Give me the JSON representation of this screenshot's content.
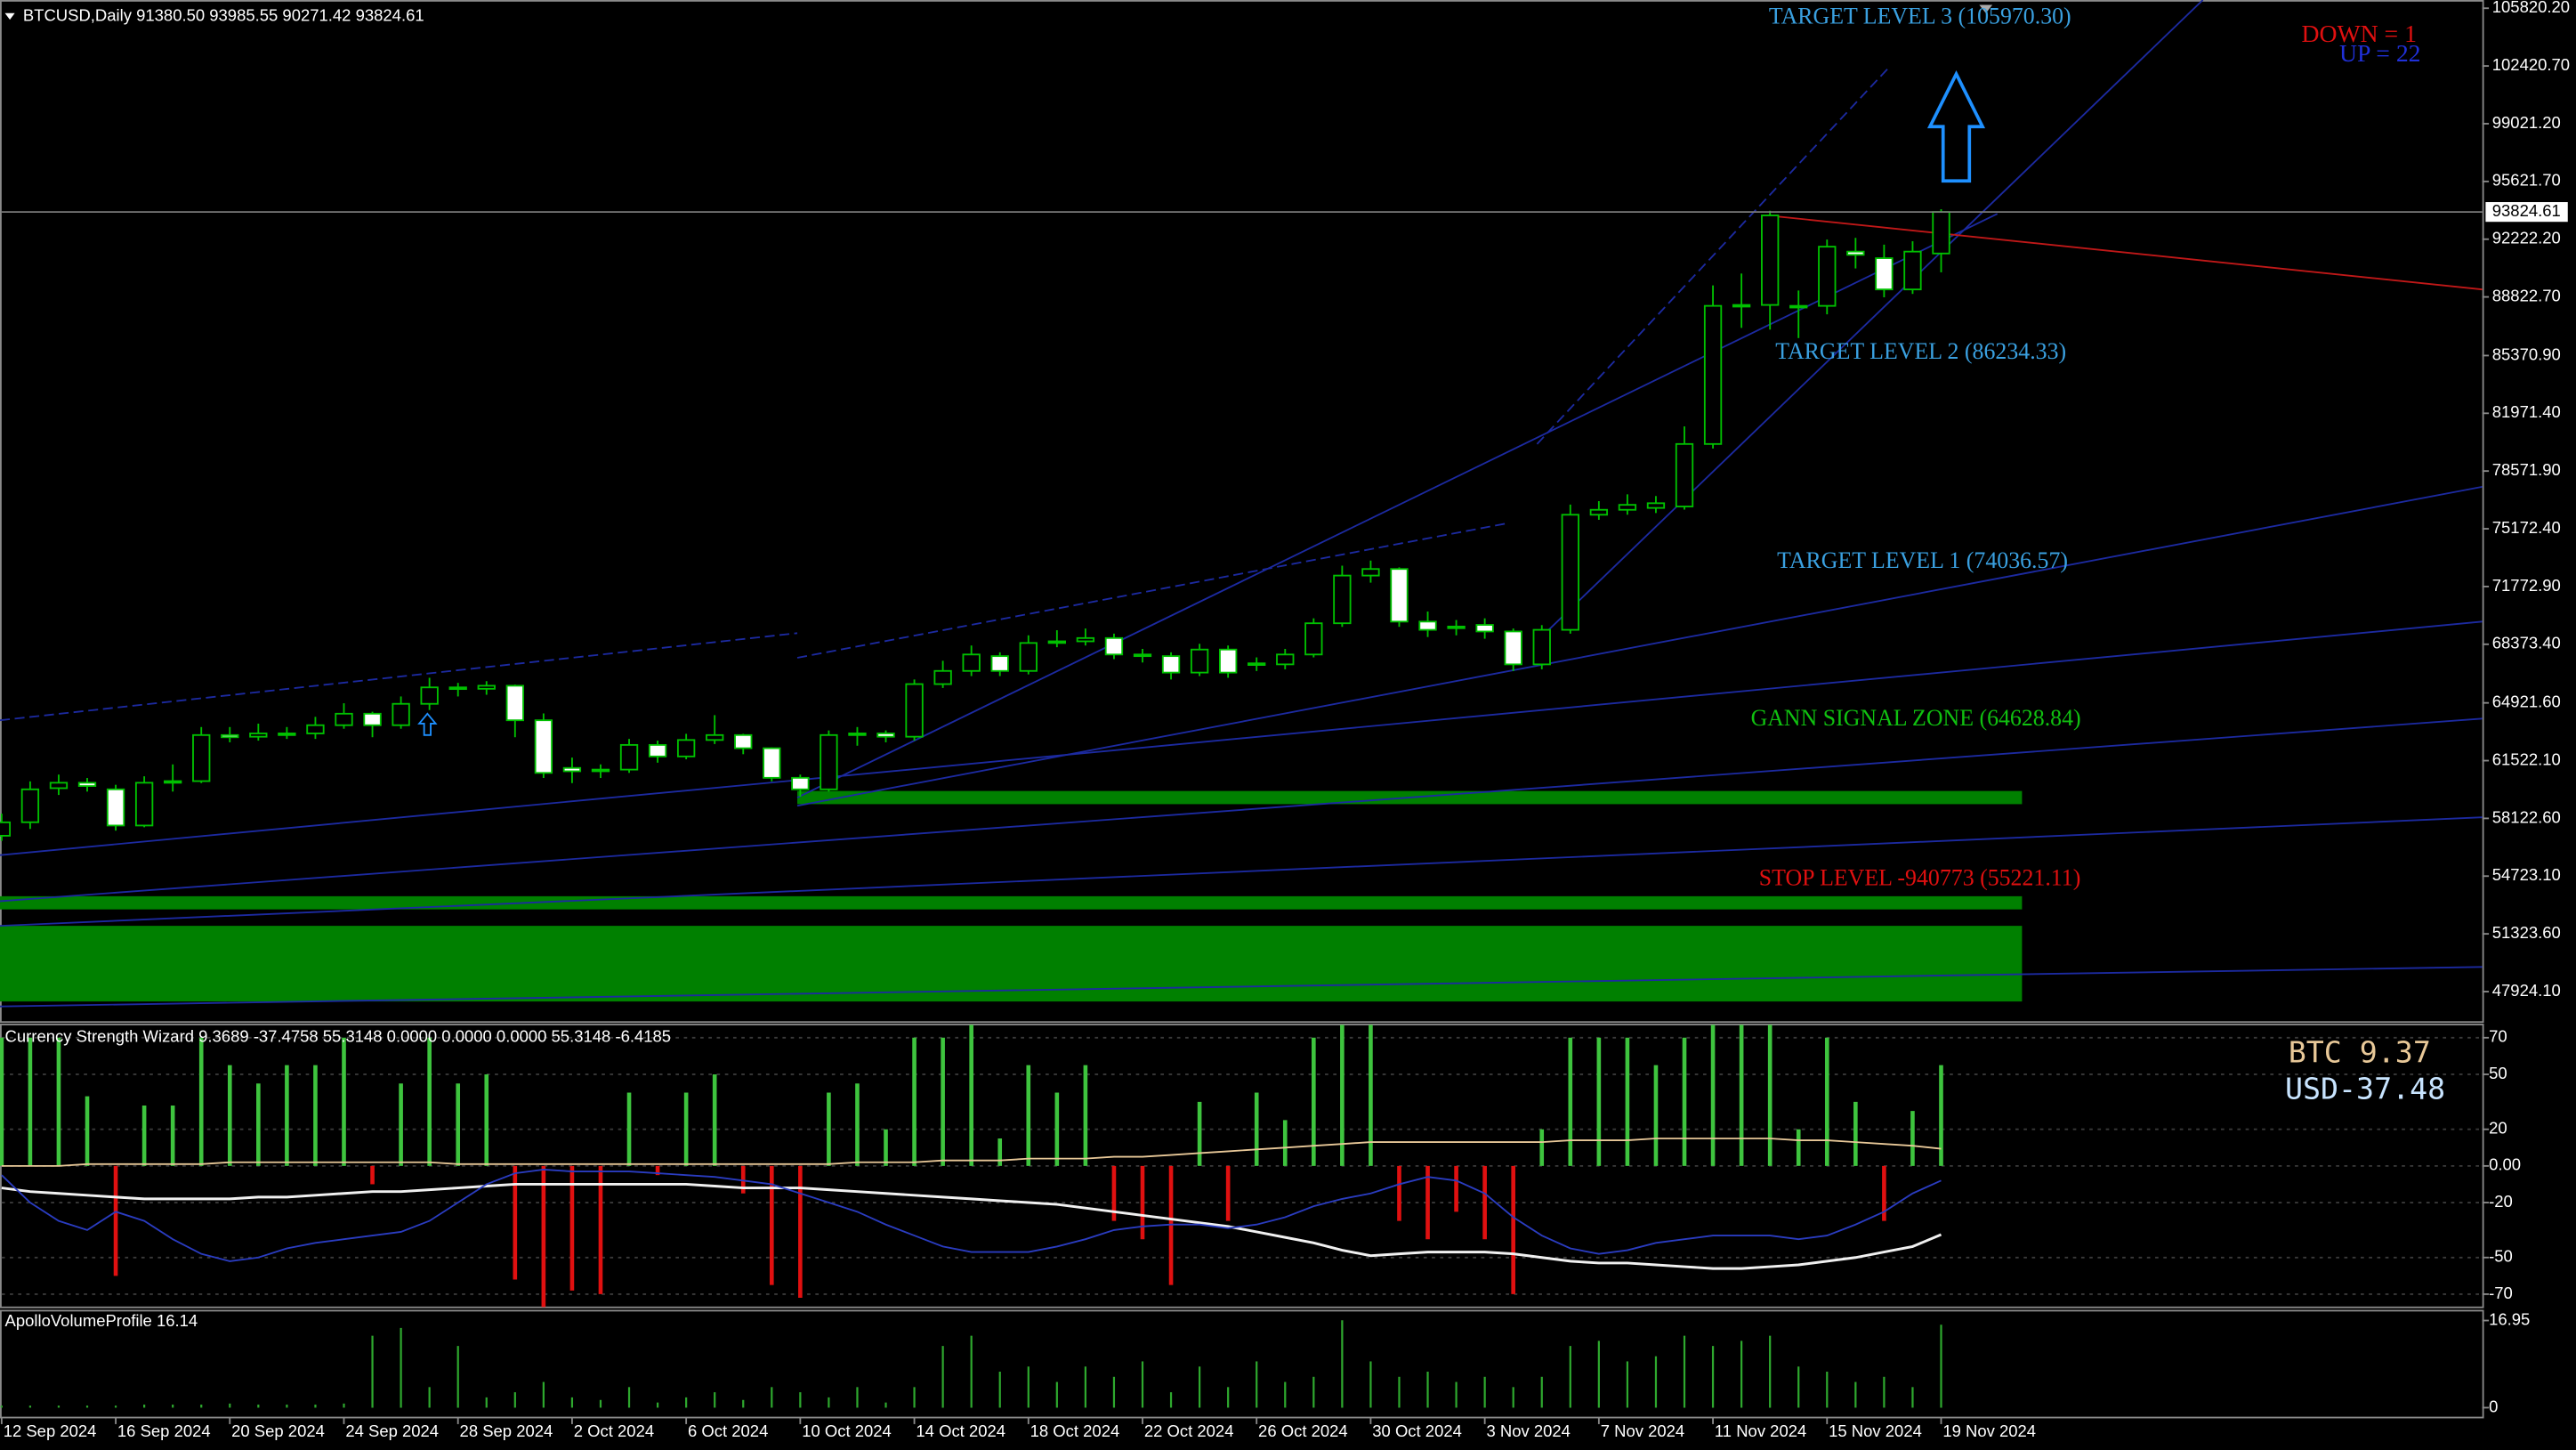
{
  "chart_data": [
    {
      "type": "candlestick",
      "title": "BTCUSD,Daily  91380.50 93985.55 90271.42 93824.61",
      "categories": [
        "12 Sep 2024",
        null,
        null,
        null,
        "16 Sep 2024",
        null,
        null,
        null,
        "20 Sep 2024",
        null,
        null,
        null,
        "24 Sep 2024",
        null,
        null,
        null,
        "28 Sep 2024",
        null,
        null,
        null,
        "2 Oct 2024",
        null,
        null,
        null,
        "6 Oct 2024",
        null,
        null,
        null,
        "10 Oct 2024",
        null,
        null,
        null,
        "14 Oct 2024",
        null,
        null,
        null,
        "18 Oct 2024",
        null,
        null,
        null,
        "22 Oct 2024",
        null,
        null,
        null,
        "26 Oct 2024",
        null,
        null,
        null,
        "30 Oct 2024",
        null,
        null,
        null,
        "3 Nov 2024",
        null,
        null,
        null,
        "7 Nov 2024",
        null,
        null,
        null,
        "11 Nov 2024",
        null,
        null,
        null,
        "15 Nov 2024",
        null,
        null,
        null,
        "19 Nov 2024"
      ],
      "open": [
        57100,
        57896,
        59900,
        60220,
        59832,
        57702,
        60220,
        60316,
        63027,
        62930,
        63124,
        63124,
        63608,
        64285,
        63608,
        64866,
        65834,
        65750,
        65931,
        63898,
        61091,
        60897,
        60994,
        62446,
        61769,
        62737,
        63027,
        62253,
        60510,
        59832,
        63027,
        63124,
        62930,
        66028,
        66803,
        67674,
        66803,
        68449,
        68546,
        68739,
        67771,
        67674,
        66706,
        68062,
        67190,
        67190,
        67771,
        69610,
        72418,
        72805,
        69707,
        69416,
        69513,
        69126,
        67190,
        69223,
        75999,
        76290,
        76400,
        76484,
        80163,
        88296,
        88350,
        88296,
        88296,
        91491,
        91104,
        89264,
        91380.5
      ],
      "high": [
        58400,
        60300,
        60700,
        60500,
        60100,
        60600,
        61300,
        63500,
        63500,
        63700,
        63500,
        64100,
        64900,
        64400,
        65300,
        66400,
        66100,
        66200,
        66000,
        64300,
        61700,
        61300,
        62800,
        62700,
        63100,
        64200,
        63100,
        62300,
        60700,
        63300,
        63500,
        63300,
        66300,
        67400,
        68300,
        67900,
        68900,
        69200,
        69300,
        69000,
        68100,
        67900,
        68400,
        68300,
        67600,
        68100,
        69900,
        73000,
        73300,
        72900,
        70300,
        69800,
        69900,
        69300,
        69500,
        76600,
        76800,
        77200,
        77100,
        81200,
        89500,
        90200,
        93900,
        89200,
        92200,
        92300,
        91900,
        92100,
        93985.55
      ],
      "low": [
        56800,
        57500,
        59500,
        59700,
        57400,
        57600,
        59700,
        60200,
        62600,
        62700,
        62800,
        62800,
        63400,
        62900,
        63400,
        64500,
        65300,
        65400,
        62900,
        60500,
        60200,
        60500,
        60800,
        61400,
        61600,
        62500,
        61900,
        60300,
        59400,
        59700,
        62400,
        62600,
        62700,
        65800,
        66500,
        66500,
        66600,
        68200,
        68300,
        67500,
        67300,
        66300,
        66500,
        66400,
        66800,
        66900,
        67600,
        69400,
        72000,
        69400,
        68800,
        68900,
        68700,
        66800,
        66900,
        69000,
        75700,
        76000,
        76100,
        76300,
        79900,
        87000,
        86900,
        86400,
        87800,
        90500,
        88800,
        89000,
        90271.42
      ],
      "close": [
        57890,
        59832,
        60220,
        60026,
        57702,
        60220,
        60316,
        63027,
        62900,
        63124,
        63050,
        63608,
        64285,
        63608,
        64866,
        65834,
        65750,
        65931,
        63898,
        60800,
        60897,
        60994,
        62446,
        61769,
        62737,
        63027,
        62253,
        60510,
        59832,
        63027,
        63124,
        62930,
        66028,
        66803,
        67771,
        66803,
        68449,
        68546,
        68739,
        67771,
        67700,
        66706,
        68062,
        66706,
        67250,
        67771,
        69610,
        72418,
        72805,
        69707,
        69223,
        69350,
        69126,
        67190,
        69223,
        75999,
        76290,
        76581,
        76677,
        80163,
        88296,
        88350,
        93621,
        88250,
        91781,
        91300,
        89264,
        91491,
        93824.61
      ],
      "up_color": "#000000",
      "down_color": "#ffffff",
      "outline_color": "#00c000",
      "ylim": [
        46180,
        106304
      ],
      "yticks": [
        {
          "value": 105820.2,
          "label": "105820.20"
        },
        {
          "value": 102420.7,
          "label": "102420.70"
        },
        {
          "value": 99021.2,
          "label": "99021.20"
        },
        {
          "value": 95621.7,
          "label": "95621.70"
        },
        {
          "value": 92222.2,
          "label": "92222.20"
        },
        {
          "value": 88822.7,
          "label": "88822.70"
        },
        {
          "value": 85370.9,
          "label": "85370.90"
        },
        {
          "value": 81971.4,
          "label": "81971.40"
        },
        {
          "value": 78571.9,
          "label": "78571.90"
        },
        {
          "value": 75172.4,
          "label": "75172.40"
        },
        {
          "value": 71772.9,
          "label": "71772.90"
        },
        {
          "value": 68373.4,
          "label": "68373.40"
        },
        {
          "value": 64921.6,
          "label": "64921.60"
        },
        {
          "value": 61522.1,
          "label": "61522.10"
        },
        {
          "value": 58122.6,
          "label": "58122.60"
        },
        {
          "value": 54723.1,
          "label": "54723.10"
        },
        {
          "value": 51323.6,
          "label": "51323.60"
        },
        {
          "value": 47924.1,
          "label": "47924.10"
        }
      ],
      "annotations": {
        "target3": "TARGET LEVEL 3 (105970.30)",
        "target2": "TARGET LEVEL 2 (86234.33)",
        "target1": "TARGET LEVEL 1 (74036.57)",
        "gann": "GANN SIGNAL ZONE (64628.84)",
        "stop": "STOP LEVEL -940773 (55221.11)",
        "down": "DOWN = 1",
        "up": "UP = 22"
      }
    },
    {
      "type": "oscillator",
      "title": "Currency Strength Wizard  9.3689 -37.4758 55.3148 0.0000 0.0000 0.0000 55.3148 -6.4185",
      "labels": [
        "BTC 9.37",
        "USD-37.48"
      ],
      "bars": {
        "color": "#3ec43e",
        "negative_color": "#e01010",
        "values": [
          70,
          70,
          70,
          38,
          -60,
          33,
          33,
          70,
          55,
          45,
          55,
          55,
          70,
          -10,
          45,
          70,
          45,
          50,
          -62,
          -77,
          -68,
          -70,
          40,
          -5,
          40,
          50,
          -15,
          -65,
          -72,
          40,
          45,
          20,
          70,
          70,
          77,
          15,
          55,
          40,
          55,
          -30,
          -40,
          -65,
          35,
          -30,
          40,
          25,
          70,
          77,
          77,
          -30,
          -40,
          -25,
          -40,
          -70,
          20,
          70,
          70,
          70,
          55,
          70,
          77,
          77,
          77,
          20,
          70,
          35,
          -30,
          30,
          55
        ]
      },
      "lines": [
        {
          "color": "#f0f0f0",
          "values": [
            -12,
            -14,
            -15,
            -16,
            -17,
            -18,
            -18,
            -18,
            -18,
            -17,
            -17,
            -16,
            -15,
            -14,
            -14,
            -13,
            -12,
            -11,
            -10,
            -10,
            -10,
            -10,
            -10,
            -10,
            -10,
            -11,
            -12,
            -12,
            -12,
            -13,
            -14,
            -15,
            -16,
            -17,
            -18,
            -19,
            -20,
            -21,
            -23,
            -25,
            -27,
            -29,
            -31,
            -33,
            -36,
            -39,
            -42,
            -46,
            -49,
            -48,
            -47,
            -47,
            -47,
            -48,
            -50,
            -52,
            -53,
            -53,
            -54,
            -55,
            -56,
            -56,
            -55,
            -54,
            -52,
            -50,
            -47,
            -44,
            -37.48
          ]
        },
        {
          "color": "#2a3cc0",
          "values": [
            -5,
            -20,
            -30,
            -35,
            -25,
            -30,
            -40,
            -48,
            -52,
            -50,
            -45,
            -42,
            -40,
            -38,
            -36,
            -30,
            -20,
            -10,
            -4,
            -2,
            -3,
            -3,
            -3,
            -4,
            -5,
            -6,
            -8,
            -10,
            -15,
            -20,
            -25,
            -32,
            -38,
            -44,
            -47,
            -47,
            -47,
            -44,
            -40,
            -35,
            -33,
            -32,
            -32,
            -34,
            -32,
            -28,
            -22,
            -18,
            -15,
            -10,
            -6,
            -8,
            -15,
            -28,
            -38,
            -45,
            -48,
            -46,
            -42,
            -40,
            -38,
            -38,
            -38,
            -40,
            -38,
            -32,
            -25,
            -15,
            -8
          ]
        },
        {
          "color": "#e8c898",
          "values": [
            0,
            0,
            0,
            1,
            1,
            1,
            1,
            1,
            2,
            2,
            2,
            2,
            2,
            2,
            2,
            2,
            1,
            1,
            1,
            1,
            1,
            1,
            1,
            1,
            1,
            1,
            1,
            1,
            1,
            1,
            2,
            2,
            2,
            3,
            3,
            3,
            4,
            4,
            4,
            5,
            5,
            6,
            7,
            8,
            9,
            10,
            11,
            12,
            13,
            13,
            13,
            13,
            13,
            13,
            13,
            14,
            14,
            14,
            15,
            15,
            15,
            15,
            15,
            14,
            14,
            13,
            12,
            11,
            9.37
          ]
        }
      ],
      "ylim": [
        -77.2,
        77.2
      ],
      "yticks": [
        70,
        50,
        20,
        {
          "value": 0,
          "label": "0.00"
        },
        -20,
        -50,
        -70
      ]
    },
    {
      "type": "volume",
      "title": "ApolloVolumeProfile 16.14",
      "color": "#2ea82e",
      "values": [
        0.4,
        0.4,
        0.4,
        0.4,
        0.4,
        0.6,
        0.6,
        0.6,
        0.8,
        0.6,
        0.6,
        0.6,
        0.8,
        14,
        15.5,
        4,
        12,
        2,
        3,
        5,
        2,
        1.5,
        4,
        1,
        2,
        3,
        1.5,
        4,
        3,
        2,
        4,
        1,
        4,
        12,
        14,
        7,
        8,
        5,
        8,
        6,
        9,
        3,
        8,
        4,
        9,
        5,
        6,
        17,
        9,
        6,
        7,
        5,
        6,
        4,
        6,
        12,
        13,
        9,
        10,
        14,
        12,
        13,
        14,
        8,
        7,
        5,
        6,
        4,
        16.14
      ],
      "ylim": [
        -1.92,
        18.87
      ],
      "yticks": [
        16.95,
        0
      ]
    }
  ]
}
